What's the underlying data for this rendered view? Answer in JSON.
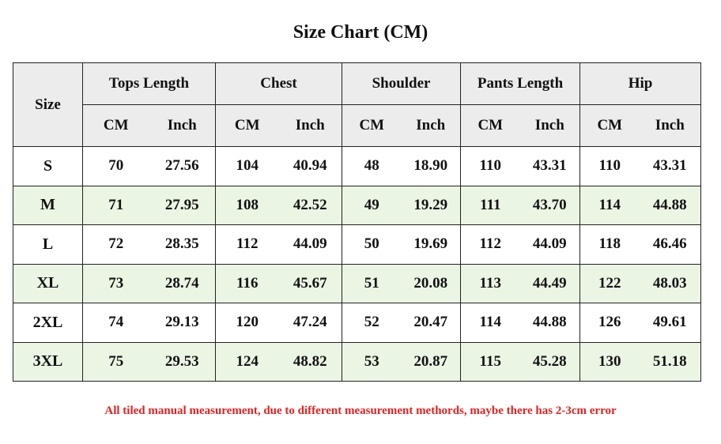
{
  "title": "Size Chart (CM)",
  "header": {
    "size_label": "Size",
    "groups": [
      "Tops Length",
      "Chest",
      "Shoulder",
      "Pants Length",
      "Hip"
    ],
    "unit_cm": "CM",
    "unit_inch": "Inch"
  },
  "rows": [
    {
      "size": "S",
      "values": [
        "70",
        "27.56",
        "104",
        "40.94",
        "48",
        "18.90",
        "110",
        "43.31",
        "110",
        "43.31"
      ]
    },
    {
      "size": "M",
      "values": [
        "71",
        "27.95",
        "108",
        "42.52",
        "49",
        "19.29",
        "111",
        "43.70",
        "114",
        "44.88"
      ]
    },
    {
      "size": "L",
      "values": [
        "72",
        "28.35",
        "112",
        "44.09",
        "50",
        "19.69",
        "112",
        "44.09",
        "118",
        "46.46"
      ]
    },
    {
      "size": "XL",
      "values": [
        "73",
        "28.74",
        "116",
        "45.67",
        "51",
        "20.08",
        "113",
        "44.49",
        "122",
        "48.03"
      ]
    },
    {
      "size": "2XL",
      "values": [
        "74",
        "29.13",
        "120",
        "47.24",
        "52",
        "20.47",
        "114",
        "44.88",
        "126",
        "49.61"
      ]
    },
    {
      "size": "3XL",
      "values": [
        "75",
        "29.53",
        "124",
        "48.82",
        "53",
        "20.87",
        "115",
        "45.28",
        "130",
        "51.18"
      ]
    }
  ],
  "note": "All tiled manual measurement, due to different measurement methords, maybe there has 2-3cm error",
  "colors": {
    "header_bg": "#ececec",
    "alt_row_bg": "#eaf5e3",
    "note_color": "#e32020"
  }
}
